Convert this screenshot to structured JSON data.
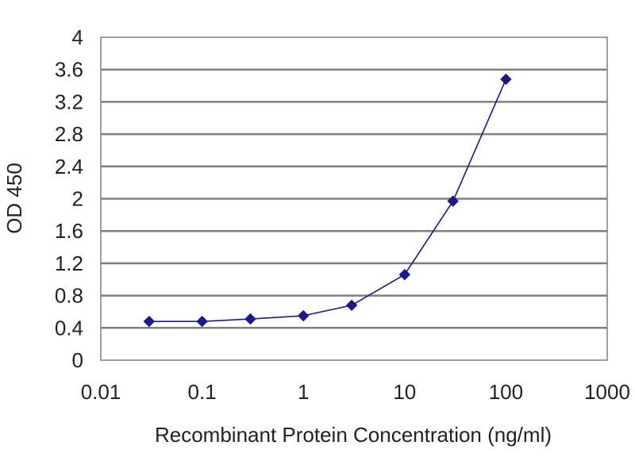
{
  "chart_data": {
    "type": "line",
    "xlabel": "Recombinant Protein Concentration (ng/ml)",
    "ylabel": "OD 450",
    "x_scale": "log",
    "xlim": [
      0.01,
      1000
    ],
    "ylim": [
      0,
      4
    ],
    "x_ticks": [
      "0.01",
      "0.1",
      "1",
      "10",
      "100",
      "1000"
    ],
    "y_ticks": [
      "0",
      "0.4",
      "0.8",
      "1.2",
      "1.6",
      "2",
      "2.4",
      "2.8",
      "3.2",
      "3.6",
      "4"
    ],
    "grid": "horizontal",
    "series": [
      {
        "color": "#1a1a8c",
        "marker": "diamond",
        "points": [
          {
            "x": 0.03,
            "y": 0.48
          },
          {
            "x": 0.1,
            "y": 0.48
          },
          {
            "x": 0.3,
            "y": 0.51
          },
          {
            "x": 1,
            "y": 0.55
          },
          {
            "x": 3,
            "y": 0.68
          },
          {
            "x": 10,
            "y": 1.06
          },
          {
            "x": 30,
            "y": 1.97
          },
          {
            "x": 100,
            "y": 3.48
          }
        ]
      }
    ],
    "colors": {
      "plot_background": "#ffffff",
      "gridline": "#808080",
      "frame": "#808080"
    }
  }
}
